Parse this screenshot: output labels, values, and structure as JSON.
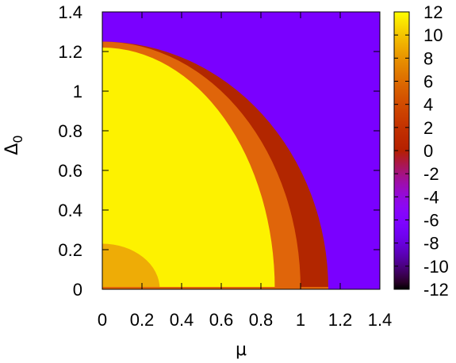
{
  "chart_data": {
    "type": "heatmap",
    "title": "",
    "xlabel": "μ",
    "ylabel": "Δ",
    "ylabel_subscript": "0",
    "xlim": [
      0,
      1.4
    ],
    "ylim": [
      0,
      1.4
    ],
    "xticks": [
      "0",
      "0.2",
      "0.4",
      "0.6",
      "0.8",
      "1",
      "1.2",
      "1.4"
    ],
    "yticks": [
      "0",
      "0.2",
      "0.4",
      "0.6",
      "0.8",
      "1",
      "1.2",
      "1.4"
    ],
    "colorbar": {
      "range": [
        -12,
        12
      ],
      "ticks": [
        "12",
        "10",
        "8",
        "6",
        "4",
        "2",
        "0",
        "-2",
        "-4",
        "-6",
        "-8",
        "-10",
        "-12"
      ],
      "palette": "gnuplot rgbformulae 7,5,15"
    },
    "regions": [
      {
        "value": -7,
        "description": "background",
        "color": "#7a00ff"
      },
      {
        "value": 0,
        "boundary": {
          "shape": "quarter-ellipse",
          "mu_intercept": 1.14,
          "delta_intercept": 1.25
        },
        "color": "#b22600"
      },
      {
        "value": 4,
        "boundary": {
          "shape": "quarter-ellipse",
          "mu_intercept": 1.0,
          "delta_intercept": 1.25
        },
        "color": "#e0650a"
      },
      {
        "value": 10,
        "boundary": {
          "shape": "quarter-ellipse",
          "mu_intercept": 0.87,
          "delta_intercept": 1.22
        },
        "color": "#fdf200"
      },
      {
        "value": 8,
        "boundary": {
          "shape": "quarter-ellipse",
          "mu_intercept": 0.29,
          "delta_intercept": 0.23
        },
        "color": "#eeac06"
      },
      {
        "value": 4,
        "description": "thin strip along Δ0 = 0 for μ < 1.14",
        "color": "#e0650a"
      }
    ]
  }
}
